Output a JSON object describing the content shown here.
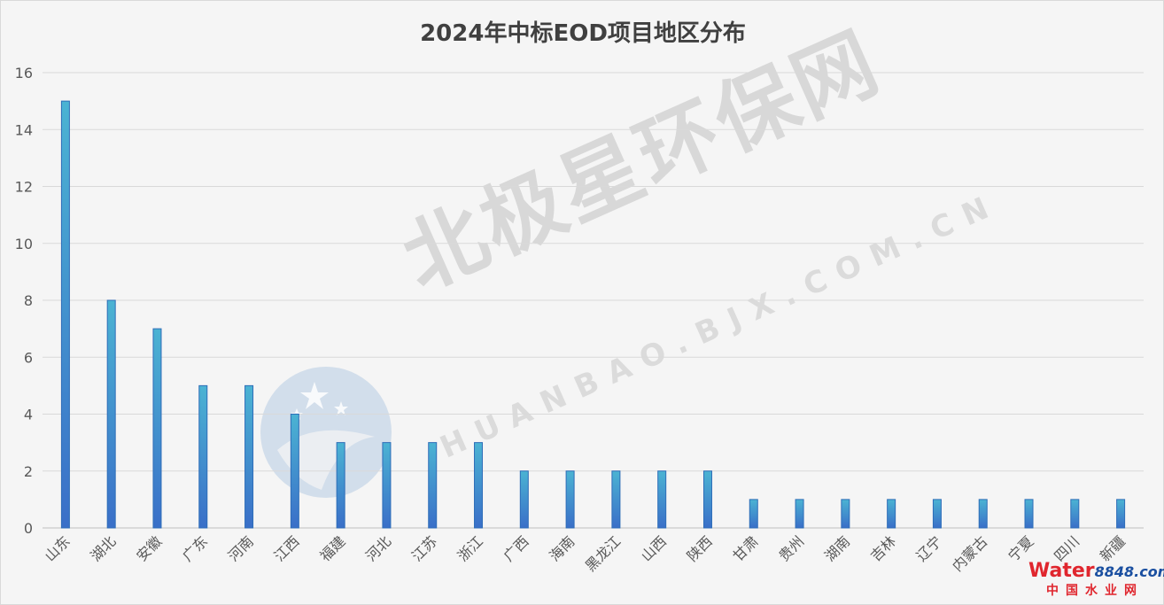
{
  "chart_data": {
    "type": "bar",
    "title": "2024年中标EOD项目地区分布",
    "xlabel": "",
    "ylabel": "",
    "ylim": [
      0,
      16
    ],
    "yticks": [
      0,
      2,
      4,
      6,
      8,
      10,
      12,
      14,
      16
    ],
    "grid": true,
    "legend": "none",
    "categories": [
      "山东",
      "湖北",
      "安徽",
      "广东",
      "河南",
      "江西",
      "福建",
      "河北",
      "江苏",
      "浙江",
      "广西",
      "海南",
      "黑龙江",
      "山西",
      "陕西",
      "甘肃",
      "贵州",
      "湖南",
      "吉林",
      "辽宁",
      "内蒙古",
      "宁夏",
      "四川",
      "新疆"
    ],
    "values": [
      15,
      8,
      7,
      5,
      5,
      4,
      3,
      3,
      3,
      3,
      2,
      2,
      2,
      2,
      2,
      1,
      1,
      1,
      1,
      1,
      1,
      1,
      1,
      1
    ],
    "colors": {
      "bar_top": "#4bb3d3",
      "bar_bottom": "#3a6fc8"
    }
  },
  "watermark": {
    "main": "北极星环保网",
    "sub": "HUANBAO.BJX.COM.CN"
  },
  "brand": {
    "top_word": "Water",
    "top_num": "8848.com",
    "bottom": "中国水业网"
  }
}
